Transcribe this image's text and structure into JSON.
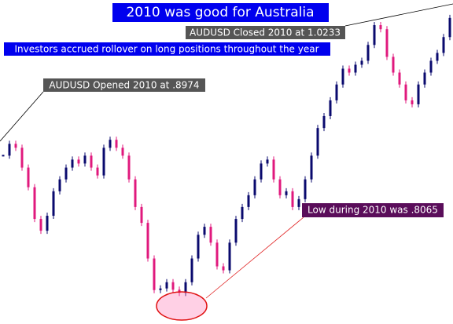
{
  "chart_data": {
    "type": "candlestick",
    "values": [
      0.9147,
      0.924,
      0.9209,
      0.9053,
      0.8898,
      0.8648,
      0.8555,
      0.8673,
      0.8866,
      0.896,
      0.9053,
      0.9116,
      0.9085,
      0.9147,
      0.9053,
      0.8991,
      0.9209,
      0.9272,
      0.9209,
      0.9147,
      0.896,
      0.8742,
      0.8617,
      0.8336,
      0.8087,
      0.81,
      0.8149,
      0.809,
      0.8065,
      0.8149,
      0.8336,
      0.8523,
      0.8586,
      0.8461,
      0.8274,
      0.8243,
      0.8461,
      0.8648,
      0.8742,
      0.8835,
      0.896,
      0.9085,
      0.9116,
      0.896,
      0.8835,
      0.8866,
      0.8742,
      0.8804,
      0.896,
      0.9147,
      0.9365,
      0.9459,
      0.9583,
      0.9708,
      0.9833,
      0.9802,
      0.9864,
      0.9895,
      1.002,
      1.0176,
      1.0144,
      0.9926,
      0.9802,
      0.9708,
      0.9583,
      0.9552,
      0.9708,
      0.9802,
      0.9895,
      0.9957,
      1.0082,
      1.0233
    ],
    "ylim": [
      0.79,
      1.03
    ],
    "up_color": "#0a0a6e",
    "down_color": "#e0197d",
    "title": "2010 was good for Australia",
    "annotations": [
      "AUDUSD Closed 2010 at 1.0233",
      "Investors accrued rollover on long positions throughout the year",
      "AUDUSD Opened 2010 at .8974",
      "Low during 2010 was .8065"
    ]
  }
}
